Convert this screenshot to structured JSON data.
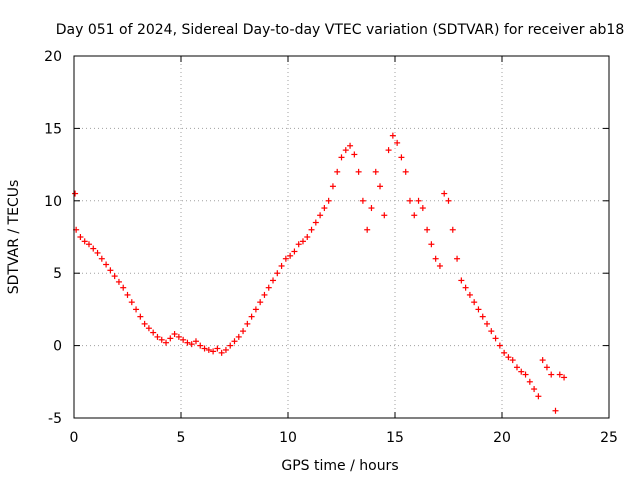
{
  "chart_data": {
    "type": "scatter",
    "title": "Day 051 of 2024, Sidereal Day-to-day VTEC variation (SDTVAR) for receiver ab18",
    "xlabel": "GPS time / hours",
    "ylabel": "SDTVAR / TECUs",
    "xlim": [
      0,
      25
    ],
    "ylim": [
      -5,
      20
    ],
    "xticks": [
      0,
      5,
      10,
      15,
      20,
      25
    ],
    "yticks": [
      -5,
      0,
      5,
      10,
      15,
      20
    ],
    "grid": true,
    "marker": "+",
    "series": [
      {
        "name": "SDTVAR",
        "color": "#ff0000",
        "x": [
          0.05,
          0.1,
          0.3,
          0.5,
          0.7,
          0.9,
          1.1,
          1.3,
          1.5,
          1.7,
          1.9,
          2.1,
          2.3,
          2.5,
          2.7,
          2.9,
          3.1,
          3.3,
          3.5,
          3.7,
          3.9,
          4.1,
          4.3,
          4.5,
          4.7,
          4.9,
          5.1,
          5.3,
          5.5,
          5.7,
          5.9,
          6.1,
          6.3,
          6.5,
          6.7,
          6.9,
          7.1,
          7.3,
          7.5,
          7.7,
          7.9,
          8.1,
          8.3,
          8.5,
          8.7,
          8.9,
          9.1,
          9.3,
          9.5,
          9.7,
          9.9,
          10.1,
          10.3,
          10.5,
          10.7,
          10.9,
          11.1,
          11.3,
          11.5,
          11.7,
          11.9,
          12.1,
          12.3,
          12.5,
          12.7,
          12.9,
          13.1,
          13.3,
          13.5,
          13.7,
          13.9,
          14.1,
          14.3,
          14.5,
          14.7,
          14.9,
          15.1,
          15.3,
          15.5,
          15.7,
          15.9,
          16.1,
          16.3,
          16.5,
          16.7,
          16.9,
          17.1,
          17.3,
          17.5,
          17.7,
          17.9,
          18.1,
          18.3,
          18.5,
          18.7,
          18.9,
          19.1,
          19.3,
          19.5,
          19.7,
          19.9,
          20.1,
          20.3,
          20.5,
          20.7,
          20.9,
          21.1,
          21.3,
          21.5,
          21.7,
          21.9,
          22.1,
          22.3,
          22.5,
          22.7,
          22.9
        ],
        "y": [
          10.5,
          8.0,
          7.5,
          7.2,
          7.0,
          6.7,
          6.4,
          6.0,
          5.6,
          5.2,
          4.8,
          4.4,
          4.0,
          3.5,
          3.0,
          2.5,
          2.0,
          1.5,
          1.2,
          0.9,
          0.6,
          0.4,
          0.2,
          0.5,
          0.8,
          0.6,
          0.4,
          0.2,
          0.1,
          0.3,
          0.0,
          -0.2,
          -0.3,
          -0.4,
          -0.2,
          -0.5,
          -0.3,
          0.0,
          0.3,
          0.6,
          1.0,
          1.5,
          2.0,
          2.5,
          3.0,
          3.5,
          4.0,
          4.5,
          5.0,
          5.5,
          6.0,
          6.2,
          6.5,
          7.0,
          7.2,
          7.5,
          8.0,
          8.5,
          9.0,
          9.5,
          10.0,
          11.0,
          12.0,
          13.0,
          13.5,
          13.8,
          13.2,
          12.0,
          10.0,
          8.0,
          9.5,
          12.0,
          11.0,
          9.0,
          13.5,
          14.5,
          14.0,
          13.0,
          12.0,
          10.0,
          9.0,
          10.0,
          9.5,
          8.0,
          7.0,
          6.0,
          5.5,
          10.5,
          10.0,
          8.0,
          6.0,
          4.5,
          4.0,
          3.5,
          3.0,
          2.5,
          2.0,
          1.5,
          1.0,
          0.5,
          0.0,
          -0.5,
          -0.8,
          -1.0,
          -1.5,
          -1.8,
          -2.0,
          -2.5,
          -3.0,
          -3.5,
          -1.0,
          -1.5,
          -2.0,
          -4.5,
          -2.0,
          -2.2
        ]
      }
    ]
  }
}
